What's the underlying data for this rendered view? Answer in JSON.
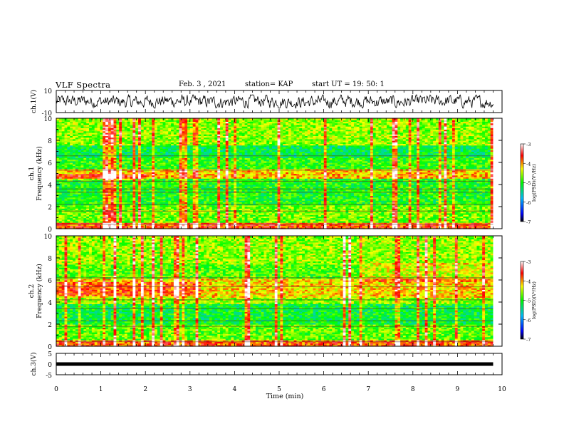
{
  "header": {
    "title": "VLF Spectra",
    "date": "Feb. 3 , 2021",
    "station": "station= KAP",
    "start": "start UT = 19: 50: 1"
  },
  "chart_data": [
    {
      "type": "line",
      "panel": "ch1-waveform",
      "ylabel": "ch.1(V)",
      "ylim": [
        -10,
        10
      ],
      "ytick_labels": [
        "10",
        "-10"
      ],
      "xlim": [
        0,
        10
      ],
      "data_end_min": 9.8,
      "amplitude_range_V": [
        -6,
        6
      ],
      "color": "#000000"
    },
    {
      "type": "heatmap",
      "panel": "ch1-spectrogram",
      "ylabel": "ch.1 Frequency (kHz)",
      "ylim": [
        0,
        10
      ],
      "yticks": [
        0,
        2,
        4,
        6,
        8,
        10
      ],
      "ytick_labels": [
        "0",
        "2",
        "4",
        "6",
        "8",
        "10"
      ],
      "xlim": [
        0,
        10
      ],
      "data_end_min": 9.8,
      "colorbar": {
        "label": "log(PSD)(V²/Hz)",
        "range": [
          -7,
          -3
        ],
        "ticks": [
          "-3",
          "-4",
          "-5",
          "-6",
          "-7"
        ]
      }
    },
    {
      "type": "heatmap",
      "panel": "ch2-spectrogram",
      "ylabel": "ch.2 Frequency (kHz)",
      "ylim": [
        0,
        10
      ],
      "yticks": [
        0,
        2,
        4,
        6,
        8,
        10
      ],
      "ytick_labels": [
        "0",
        "2",
        "4",
        "6",
        "8",
        "10"
      ],
      "xlim": [
        0,
        10
      ],
      "data_end_min": 9.8,
      "colorbar": {
        "label": "log(PSD)(V²/Hz)",
        "range": [
          -7,
          -3
        ],
        "ticks": [
          "-3",
          "-4",
          "-5",
          "-6",
          "-7"
        ]
      }
    },
    {
      "type": "line",
      "panel": "ch3-waveform",
      "ylabel": "ch.3(V)",
      "ylim": [
        -5,
        5
      ],
      "ytick_labels": [
        "5",
        "0",
        "-5"
      ],
      "xlim": [
        0,
        10
      ],
      "level_V": 0,
      "data_end_min": 9.8,
      "color": "#000000"
    }
  ],
  "xaxis": {
    "label": "Time (min)",
    "ticks": [
      "0",
      "1",
      "2",
      "3",
      "4",
      "5",
      "6",
      "7",
      "8",
      "9",
      "10"
    ]
  }
}
